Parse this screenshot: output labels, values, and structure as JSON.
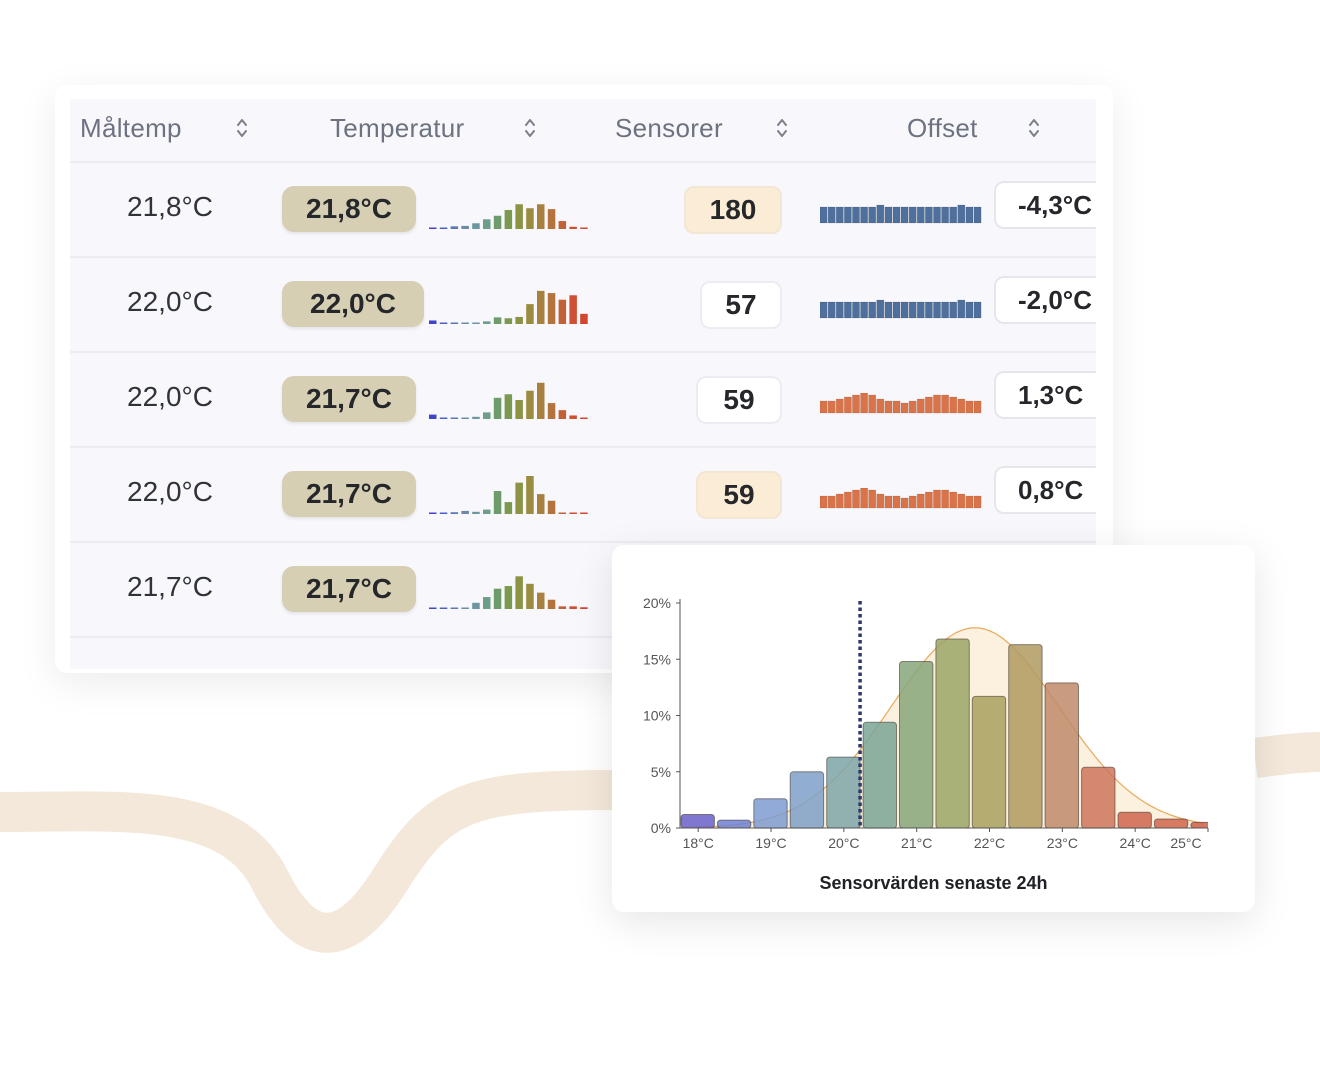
{
  "colors": {
    "wave": "#f3e8da",
    "badge_temp": "#d6cfb4",
    "badge_sensor_highlight": "#fbecd6",
    "offset_negative": "#4f6f9c",
    "offset_positive": "#d9744a",
    "curve": "#e9a95a",
    "dotted_line": "#2a3a6e"
  },
  "table": {
    "columns": [
      {
        "label": "Måltemp"
      },
      {
        "label": "Temperatur"
      },
      {
        "label": "Sensorer"
      },
      {
        "label": "Offset"
      }
    ],
    "rows": [
      {
        "target": "21,8°C",
        "temperature": "21,8°C",
        "sensors": "180",
        "sensors_highlight": true,
        "offset": "-4,3°C",
        "offset_sign": "negative",
        "spark": [
          0.3,
          0.3,
          0.6,
          0.7,
          1.3,
          2.2,
          3.0,
          4.3,
          5.6,
          4.7,
          5.6,
          4.5,
          1.8,
          0.5,
          0.3
        ]
      },
      {
        "target": "22,0°C",
        "temperature": "22,0°C",
        "sensors": "57",
        "sensors_highlight": false,
        "offset": "-2,0°C",
        "offset_sign": "negative",
        "spark": [
          0.8,
          0.2,
          0.1,
          0,
          0,
          0.6,
          1.5,
          1.3,
          1.6,
          4.5,
          7.5,
          7.0,
          5.5,
          6.5,
          2.3
        ]
      },
      {
        "target": "22,0°C",
        "temperature": "21,7°C",
        "sensors": "59",
        "sensors_highlight": false,
        "offset": "1,3°C",
        "offset_sign": "positive",
        "spark": [
          1.0,
          0.3,
          0.1,
          0,
          0.5,
          1.5,
          4.8,
          5.6,
          4.3,
          6.4,
          8.2,
          3.6,
          2.0,
          0.8,
          0.3
        ]
      },
      {
        "target": "22,0°C",
        "temperature": "21,7°C",
        "sensors": "59",
        "sensors_highlight": true,
        "offset": "0,8°C",
        "offset_sign": "positive",
        "spark": [
          0.3,
          0.3,
          0.4,
          0.7,
          0.5,
          1.0,
          5.2,
          2.7,
          7.1,
          8.6,
          4.5,
          3.0,
          0.1,
          0,
          0
        ]
      },
      {
        "target": "21,7°C",
        "temperature": "21,7°C",
        "sensors": "",
        "sensors_highlight": false,
        "offset": "",
        "offset_sign": "none",
        "spark": [
          0.1,
          0.1,
          0.2,
          0.3,
          1.4,
          2.7,
          4.6,
          5.2,
          7.4,
          5.7,
          3.7,
          2.1,
          0.6,
          0.6,
          0.4
        ]
      }
    ]
  },
  "chart_data": {
    "type": "bar",
    "title": "Sensorvärden senaste 24h",
    "categories": [
      "18°C",
      "18,5°C",
      "19°C",
      "19,5°C",
      "20°C",
      "20,5°C",
      "21°C",
      "21,5°C",
      "22°C",
      "22,5°C",
      "23°C",
      "23,5°C",
      "24°C",
      "24,5°C",
      "25°C"
    ],
    "values": [
      1.2,
      0.7,
      2.6,
      5.0,
      6.3,
      9.4,
      14.8,
      16.8,
      11.7,
      16.3,
      12.9,
      5.4,
      1.4,
      0.8,
      0.5
    ],
    "x_tick_labels": [
      "18°C",
      "19°C",
      "20°C",
      "21°C",
      "22°C",
      "23°C",
      "24°C",
      "25°C"
    ],
    "y_tick_labels": [
      "0%",
      "5%",
      "10%",
      "15%",
      "20%"
    ],
    "ylim": [
      0,
      20
    ],
    "marker_value_c": 20.5,
    "bar_colors": [
      "#6a60c8",
      "#6f7fd2",
      "#7e9bd0",
      "#7ea0c8",
      "#7ea4a8",
      "#7aa596",
      "#86a679",
      "#9aa566",
      "#a8a05f",
      "#b09a60",
      "#c0896a",
      "#cd765d",
      "#d0654f",
      "#d0654c",
      "#cf5f48"
    ]
  }
}
